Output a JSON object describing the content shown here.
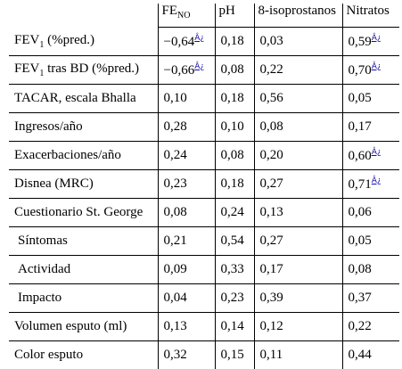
{
  "header": {
    "fe_base": "FE",
    "fe_sub": "NO",
    "ph": "pH",
    "isoprostanos": "8-isoprostanos",
    "nitratos": "Nitratos"
  },
  "rows": [
    {
      "label": "FEV",
      "label_sub": "1",
      "label_rest": " (%pred.)",
      "fe": "−0,64",
      "fe_note": "Â¿",
      "ph": "0,18",
      "iso": "0,03",
      "nit": "0,59",
      "nit_note": "Â¿"
    },
    {
      "label": "FEV",
      "label_sub": "1",
      "label_rest": " tras BD (%pred.)",
      "fe": "−0,66",
      "fe_note": "Â¿",
      "ph": "0,08",
      "iso": "0,22",
      "nit": "0,70",
      "nit_note": "Â¿"
    },
    {
      "label": "TACAR, escala Bhalla",
      "fe": "0,10",
      "ph": "0,18",
      "iso": "0,56",
      "nit": "0,05"
    },
    {
      "label": "Ingresos/año",
      "fe": "0,28",
      "ph": "0,10",
      "iso": "0,08",
      "nit": "0,17"
    },
    {
      "label": "Exacerbaciones/año",
      "fe": "0,24",
      "ph": "0,08",
      "iso": "0,20",
      "nit": "0,60",
      "nit_note": "Â¿"
    },
    {
      "label": "Disnea (MRC)",
      "fe": "0,23",
      "ph": "0,18",
      "iso": "0,27",
      "nit": "0,71",
      "nit_note": "Â¿"
    },
    {
      "label": "Cuestionario St. George",
      "fe": "0,08",
      "ph": "0,24",
      "iso": "0,13",
      "nit": "0,06"
    },
    {
      "label": "Síntomas",
      "fe": "0,21",
      "ph": "0,54",
      "iso": "0,27",
      "nit": "0,05"
    },
    {
      "label": "Actividad",
      "fe": "0,09",
      "ph": "0,33",
      "iso": "0,17",
      "nit": "0,08"
    },
    {
      "label": "Impacto",
      "fe": "0,04",
      "ph": "0,23",
      "iso": "0,39",
      "nit": "0,37"
    },
    {
      "label": "Volumen esputo (ml)",
      "fe": "0,13",
      "ph": "0,14",
      "iso": "0,12",
      "nit": "0,22"
    },
    {
      "label": "Color esputo",
      "fe": "0,32",
      "ph": "0,15",
      "iso": "0,11",
      "nit": "0,44"
    }
  ]
}
